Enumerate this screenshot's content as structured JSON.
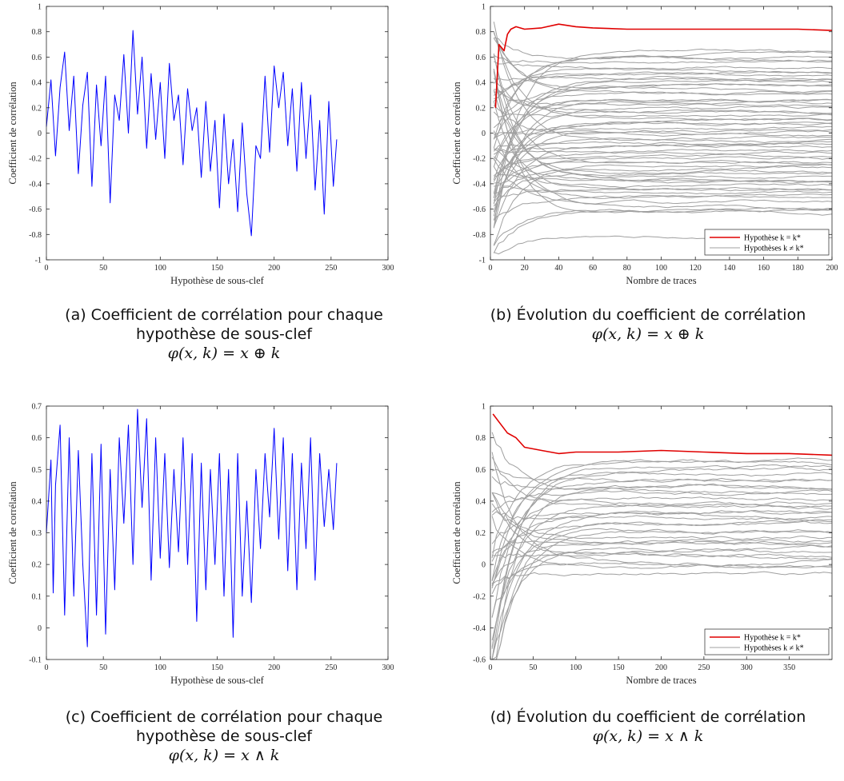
{
  "chart_data": [
    {
      "id": "a",
      "type": "line",
      "xlabel": "Hypothèse de sous-clef",
      "ylabel": "Coefficient de corrélation",
      "xlim": [
        0,
        300
      ],
      "ylim": [
        -1,
        1
      ],
      "xticks": [
        0,
        50,
        100,
        150,
        200,
        250,
        300
      ],
      "yticks": [
        -1,
        -0.8,
        -0.6,
        -0.4,
        -0.2,
        0,
        0.2,
        0.4,
        0.6,
        0.8,
        1
      ],
      "xtick_labels": [
        "0",
        "50",
        "100",
        "150",
        "200",
        "250",
        "300"
      ],
      "ytick_labels": [
        "-1",
        "-0.8",
        "-0.6",
        "-0.4",
        "-0.2",
        "0",
        "0.2",
        "0.4",
        "0.6",
        "0.8",
        "1"
      ],
      "line_color": "#0000ff",
      "series": [
        {
          "x": [
            0,
            4,
            8,
            12,
            16,
            20,
            24,
            28,
            32,
            36,
            40,
            44,
            48,
            52,
            56,
            60,
            64,
            68,
            72,
            76,
            80,
            84,
            88,
            92,
            96,
            100,
            104,
            108,
            112,
            116,
            120,
            124,
            128,
            132,
            136,
            140,
            144,
            148,
            152,
            156,
            160,
            164,
            168,
            172,
            176,
            180,
            184,
            188,
            192,
            196,
            200,
            204,
            208,
            212,
            216,
            220,
            224,
            228,
            232,
            236,
            240,
            244,
            248,
            252,
            255
          ],
          "values": [
            0.05,
            0.42,
            -0.18,
            0.36,
            0.64,
            0.02,
            0.45,
            -0.32,
            0.22,
            0.48,
            -0.42,
            0.38,
            -0.1,
            0.45,
            -0.55,
            0.3,
            0.1,
            0.62,
            0.0,
            0.81,
            0.15,
            0.6,
            -0.12,
            0.47,
            -0.05,
            0.4,
            -0.2,
            0.55,
            0.1,
            0.3,
            -0.25,
            0.35,
            0.02,
            0.2,
            -0.35,
            0.25,
            -0.3,
            0.1,
            -0.59,
            0.15,
            -0.4,
            -0.05,
            -0.62,
            0.08,
            -0.48,
            -0.81,
            -0.1,
            -0.2,
            0.45,
            -0.15,
            0.53,
            0.2,
            0.48,
            -0.1,
            0.35,
            -0.3,
            0.4,
            -0.2,
            0.3,
            -0.45,
            0.1,
            -0.64,
            0.25,
            -0.42,
            -0.05
          ]
        }
      ]
    },
    {
      "id": "b",
      "type": "line",
      "xlabel": "Nombre de traces",
      "ylabel": "Coefficient de corrélation",
      "xlim": [
        0,
        200
      ],
      "ylim": [
        -1,
        1
      ],
      "xticks": [
        0,
        20,
        40,
        60,
        80,
        100,
        120,
        140,
        160,
        180,
        200
      ],
      "yticks": [
        -1,
        -0.8,
        -0.6,
        -0.4,
        -0.2,
        0,
        0.2,
        0.4,
        0.6,
        0.8,
        1
      ],
      "xtick_labels": [
        "0",
        "20",
        "40",
        "60",
        "80",
        "100",
        "120",
        "140",
        "160",
        "180",
        "200"
      ],
      "ytick_labels": [
        "-1",
        "-0.8",
        "-0.6",
        "-0.4",
        "-0.2",
        "0",
        "0.2",
        "0.4",
        "0.6",
        "0.8",
        "1"
      ],
      "legend": {
        "position": "bottom-right",
        "entries": [
          {
            "label": "Hypothèse k = k*",
            "color": "#e00000"
          },
          {
            "label": "Hypothèses k ≠ k*",
            "color": "#a0a0a0"
          }
        ]
      },
      "correct_series": {
        "x": [
          3,
          5,
          8,
          10,
          12,
          15,
          20,
          30,
          40,
          50,
          60,
          80,
          100,
          120,
          140,
          160,
          180,
          200
        ],
        "values": [
          0.2,
          0.7,
          0.65,
          0.78,
          0.82,
          0.84,
          0.82,
          0.83,
          0.86,
          0.84,
          0.83,
          0.82,
          0.82,
          0.82,
          0.82,
          0.82,
          0.82,
          0.81
        ]
      },
      "wrong_series_final_values": [
        0.64,
        0.62,
        0.6,
        0.58,
        0.55,
        0.52,
        0.5,
        0.48,
        0.46,
        0.44,
        0.42,
        0.4,
        0.38,
        0.36,
        0.34,
        0.32,
        0.3,
        0.28,
        0.26,
        0.24,
        0.22,
        0.2,
        0.18,
        0.16,
        0.14,
        0.12,
        0.1,
        0.08,
        0.06,
        0.04,
        0.02,
        0.0,
        -0.02,
        -0.04,
        -0.06,
        -0.08,
        -0.1,
        -0.12,
        -0.14,
        -0.16,
        -0.18,
        -0.2,
        -0.22,
        -0.24,
        -0.26,
        -0.28,
        -0.3,
        -0.32,
        -0.34,
        -0.36,
        -0.38,
        -0.4,
        -0.42,
        -0.44,
        -0.46,
        -0.48,
        -0.5,
        -0.52,
        -0.55,
        -0.58,
        -0.6,
        -0.62,
        -0.64,
        -0.83
      ]
    },
    {
      "id": "c",
      "type": "line",
      "xlabel": "Hypothèse de sous-clef",
      "ylabel": "Coefficient de corrélation",
      "xlim": [
        0,
        300
      ],
      "ylim": [
        -0.1,
        0.7
      ],
      "xticks": [
        0,
        50,
        100,
        150,
        200,
        250,
        300
      ],
      "yticks": [
        -0.1,
        0,
        0.1,
        0.2,
        0.3,
        0.4,
        0.5,
        0.6,
        0.7
      ],
      "xtick_labels": [
        "0",
        "50",
        "100",
        "150",
        "200",
        "250",
        "300"
      ],
      "ytick_labels": [
        "-0.1",
        "0",
        "0.1",
        "0.2",
        "0.3",
        "0.4",
        "0.5",
        "0.6",
        "0.7"
      ],
      "line_color": "#0000ff",
      "series": [
        {
          "x": [
            0,
            4,
            6,
            8,
            12,
            16,
            20,
            24,
            28,
            32,
            36,
            40,
            44,
            48,
            52,
            56,
            60,
            64,
            68,
            72,
            76,
            80,
            84,
            88,
            92,
            96,
            100,
            104,
            108,
            112,
            116,
            120,
            124,
            128,
            132,
            136,
            140,
            144,
            148,
            152,
            156,
            160,
            164,
            168,
            172,
            176,
            180,
            184,
            188,
            192,
            196,
            200,
            204,
            208,
            212,
            216,
            220,
            224,
            228,
            232,
            236,
            240,
            244,
            248,
            252,
            255
          ],
          "values": [
            0.3,
            0.53,
            0.11,
            0.45,
            0.64,
            0.04,
            0.6,
            0.1,
            0.56,
            0.2,
            -0.06,
            0.55,
            0.04,
            0.58,
            -0.02,
            0.5,
            0.12,
            0.6,
            0.33,
            0.64,
            0.2,
            0.69,
            0.38,
            0.66,
            0.15,
            0.6,
            0.22,
            0.55,
            0.19,
            0.5,
            0.24,
            0.6,
            0.2,
            0.55,
            0.02,
            0.52,
            0.12,
            0.5,
            0.2,
            0.55,
            0.1,
            0.5,
            -0.03,
            0.55,
            0.1,
            0.4,
            0.08,
            0.5,
            0.25,
            0.55,
            0.35,
            0.63,
            0.28,
            0.6,
            0.18,
            0.55,
            0.12,
            0.52,
            0.25,
            0.6,
            0.15,
            0.55,
            0.32,
            0.5,
            0.31,
            0.52
          ]
        }
      ]
    },
    {
      "id": "d",
      "type": "line",
      "xlabel": "Nombre de traces",
      "ylabel": "Coefficient de corrélation",
      "xlim": [
        0,
        400
      ],
      "ylim": [
        -0.6,
        1
      ],
      "xticks": [
        0,
        50,
        100,
        150,
        200,
        250,
        300,
        350
      ],
      "yticks": [
        -0.6,
        -0.4,
        -0.2,
        0,
        0.2,
        0.4,
        0.6,
        0.8,
        1
      ],
      "xtick_labels": [
        "0",
        "50",
        "100",
        "150",
        "200",
        "250",
        "300",
        "350"
      ],
      "ytick_labels": [
        "-0.6",
        "-0.4",
        "-0.2",
        "0",
        "0.2",
        "0.4",
        "0.6",
        "0.8",
        "1"
      ],
      "legend": {
        "position": "bottom-right",
        "entries": [
          {
            "label": "Hypothèse k = k*",
            "color": "#e00000"
          },
          {
            "label": "Hypothèses k ≠ k*",
            "color": "#a0a0a0"
          }
        ]
      },
      "correct_series": {
        "x": [
          3,
          10,
          20,
          30,
          40,
          50,
          60,
          80,
          100,
          150,
          200,
          250,
          300,
          350,
          400
        ],
        "values": [
          0.95,
          0.9,
          0.83,
          0.8,
          0.74,
          0.73,
          0.72,
          0.7,
          0.71,
          0.71,
          0.72,
          0.71,
          0.7,
          0.7,
          0.69
        ]
      },
      "wrong_series_final_values": [
        0.64,
        0.62,
        0.6,
        0.58,
        0.56,
        0.54,
        0.52,
        0.5,
        0.48,
        0.46,
        0.44,
        0.42,
        0.4,
        0.38,
        0.36,
        0.34,
        0.32,
        0.3,
        0.28,
        0.26,
        0.24,
        0.22,
        0.2,
        0.18,
        0.16,
        0.14,
        0.12,
        0.1,
        0.08,
        0.06,
        0.04,
        0.02,
        0.0,
        -0.02,
        -0.04
      ]
    }
  ],
  "captions": {
    "a": {
      "line1": "(a) Coefficient de corrélation pour chaque",
      "line2": "hypothèse de sous-clef",
      "formula": "φ(x, k) = x ⊕ k"
    },
    "b": {
      "line1": "(b) Évolution du coefficient de corrélation",
      "formula": "φ(x, k) = x ⊕ k"
    },
    "c": {
      "line1": "(c) Coefficient de corrélation pour chaque",
      "line2": "hypothèse de sous-clef",
      "formula": "φ(x, k) = x ∧ k"
    },
    "d": {
      "line1": "(d) Évolution du coefficient de corrélation",
      "formula": "φ(x, k) = x ∧ k"
    }
  }
}
